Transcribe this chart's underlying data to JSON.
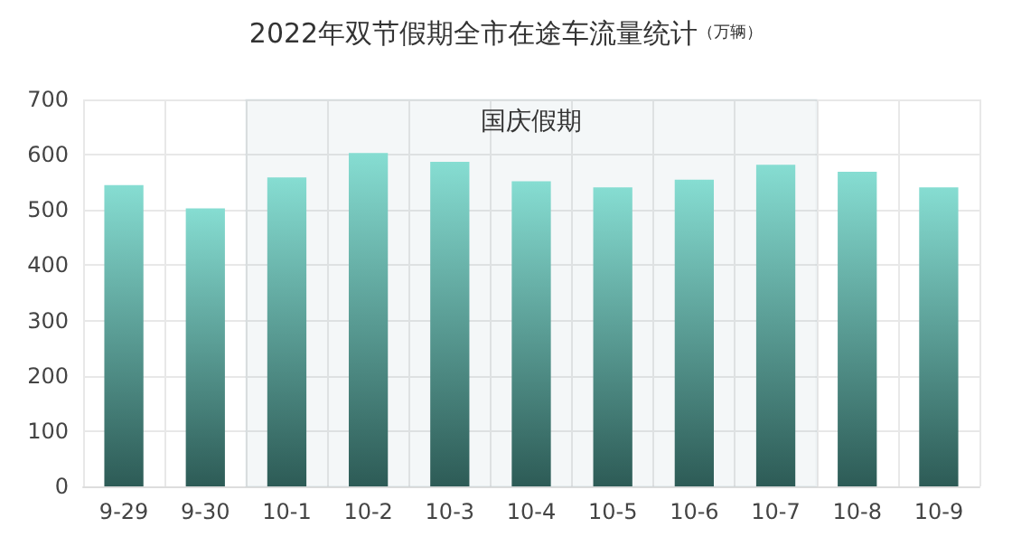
{
  "chart_data": {
    "type": "bar",
    "title": "2022年双节假期全市在途车流量统计",
    "subtitle": "（万辆）",
    "categories": [
      "9-29",
      "9-30",
      "10-1",
      "10-2",
      "10-3",
      "10-4",
      "10-5",
      "10-6",
      "10-7",
      "10-8",
      "10-9"
    ],
    "values": [
      545,
      503,
      559,
      603,
      587,
      552,
      541,
      555,
      582,
      569,
      541
    ],
    "color": "#86ddd2",
    "ylim": [
      0,
      700
    ],
    "yticks": [
      0,
      100,
      200,
      300,
      400,
      500,
      600,
      700
    ],
    "grid": true,
    "bands": [
      {
        "axis": "x",
        "from": "10-1",
        "to": "10-7",
        "label": "国庆假期",
        "color": "#3e7f80"
      }
    ]
  }
}
